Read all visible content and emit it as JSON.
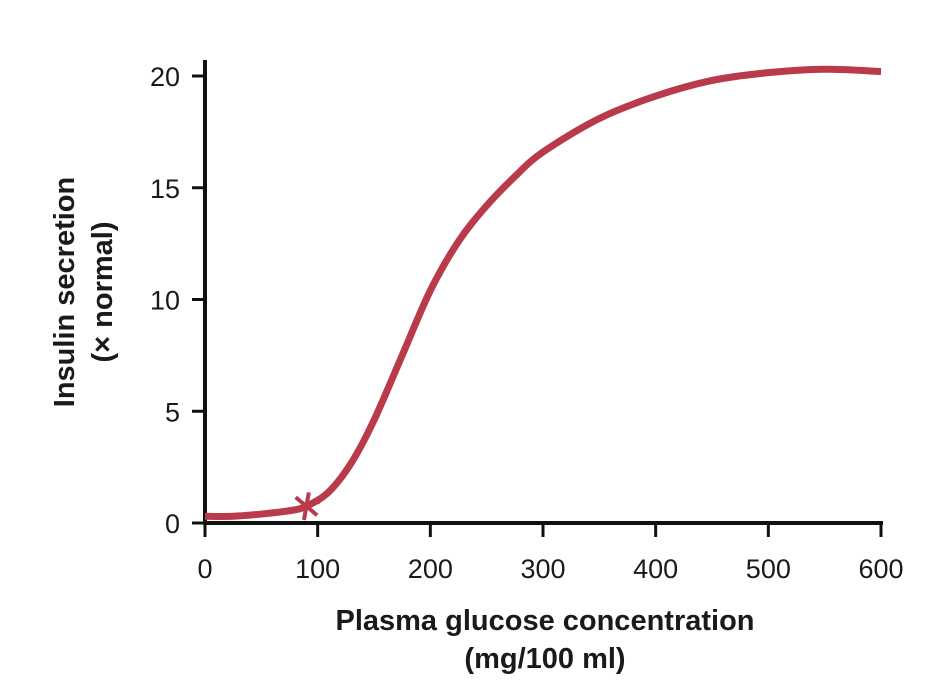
{
  "chart_data": {
    "type": "line",
    "title": "",
    "xlabel": [
      "Plasma glucose concentration",
      "(mg/100 ml)"
    ],
    "ylabel": [
      "Insulin secretion",
      "(× normal)"
    ],
    "xlim": [
      0,
      600
    ],
    "ylim": [
      0,
      20
    ],
    "xticks": [
      0,
      100,
      200,
      300,
      400,
      500,
      600
    ],
    "yticks": [
      0,
      5,
      10,
      15,
      20
    ],
    "xtick_labels": [
      "0",
      "100",
      "200",
      "300",
      "400",
      "500",
      "600"
    ],
    "ytick_labels": [
      "0",
      "5",
      "10",
      "15",
      "20"
    ],
    "grid": false,
    "series": [
      {
        "name": "Insulin secretion",
        "color": "#b83a4b",
        "x": [
          0,
          25,
          50,
          75,
          90,
          110,
          130,
          150,
          175,
          200,
          225,
          250,
          275,
          300,
          350,
          400,
          450,
          500,
          550,
          600
        ],
        "y": [
          0.3,
          0.3,
          0.4,
          0.55,
          0.75,
          1.4,
          2.7,
          4.6,
          7.5,
          10.4,
          12.6,
          14.2,
          15.5,
          16.6,
          18.1,
          19.1,
          19.8,
          20.15,
          20.3,
          20.2
        ]
      }
    ],
    "annotations": [
      {
        "type": "marker",
        "symbol": "asterisk",
        "x": 90,
        "y": 0.75,
        "color": "#b83a4b"
      }
    ]
  }
}
